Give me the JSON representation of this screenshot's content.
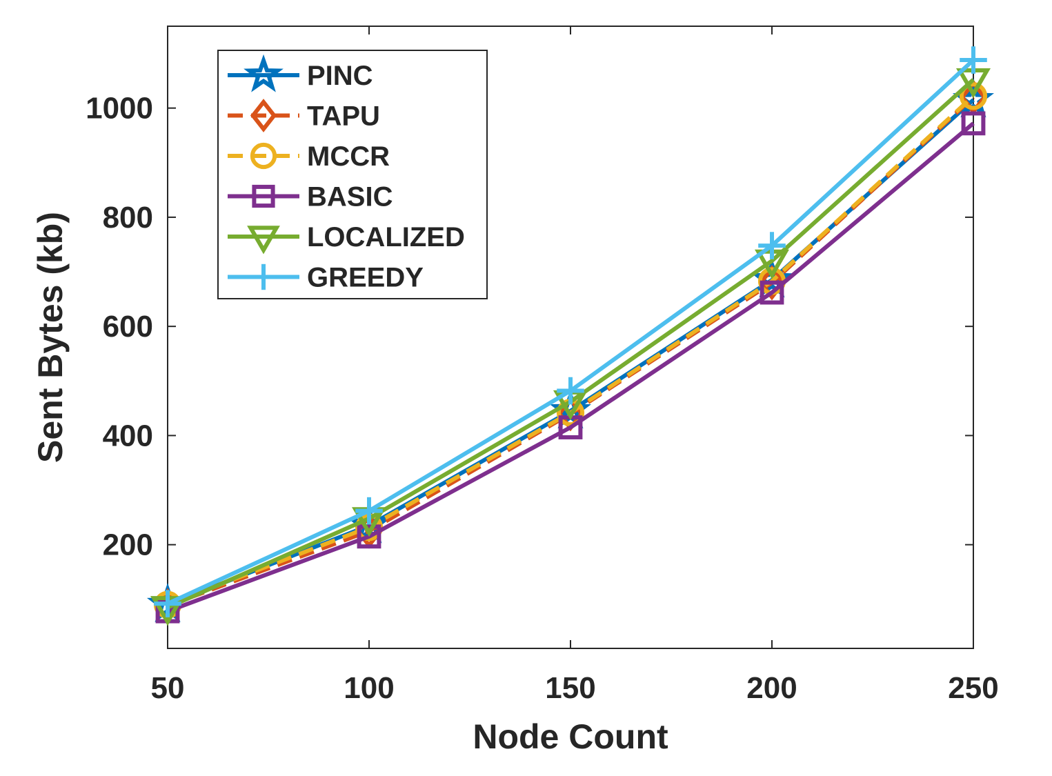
{
  "chart_data": {
    "type": "line",
    "title": "",
    "xlabel": "Node Count",
    "ylabel": "Sent Bytes (kb)",
    "x": [
      50,
      100,
      150,
      200,
      250
    ],
    "xlim": [
      50,
      250
    ],
    "ylim": [
      10,
      1150
    ],
    "xticks": [
      "50",
      "100",
      "150",
      "200",
      "250"
    ],
    "yticks": [
      200,
      400,
      600,
      800,
      1000
    ],
    "ytick_labels": [
      "200",
      "400",
      "600",
      "800",
      "1000"
    ],
    "grid": false,
    "legend_position": "top-left",
    "series": [
      {
        "name": "PINC",
        "color": "#0072bd",
        "dash": "solid",
        "marker": "star",
        "values": [
          90,
          235,
          445,
          685,
          1015
        ]
      },
      {
        "name": "TAPU",
        "color": "#d95319",
        "dash": "dashed",
        "marker": "diamond",
        "values": [
          88,
          225,
          440,
          680,
          1020
        ]
      },
      {
        "name": "MCCR",
        "color": "#edb120",
        "dash": "dashed",
        "marker": "circle",
        "values": [
          90,
          232,
          442,
          683,
          1022
        ]
      },
      {
        "name": "BASIC",
        "color": "#7e2f8e",
        "dash": "solid",
        "marker": "square",
        "values": [
          78,
          215,
          415,
          662,
          972
        ]
      },
      {
        "name": "LOCALIZED",
        "color": "#77ac30",
        "dash": "solid",
        "marker": "triangle-down",
        "values": [
          85,
          248,
          462,
          720,
          1052
        ]
      },
      {
        "name": "GREEDY",
        "color": "#4dbeee",
        "dash": "solid",
        "marker": "plus",
        "values": [
          92,
          262,
          482,
          748,
          1088
        ]
      }
    ]
  }
}
